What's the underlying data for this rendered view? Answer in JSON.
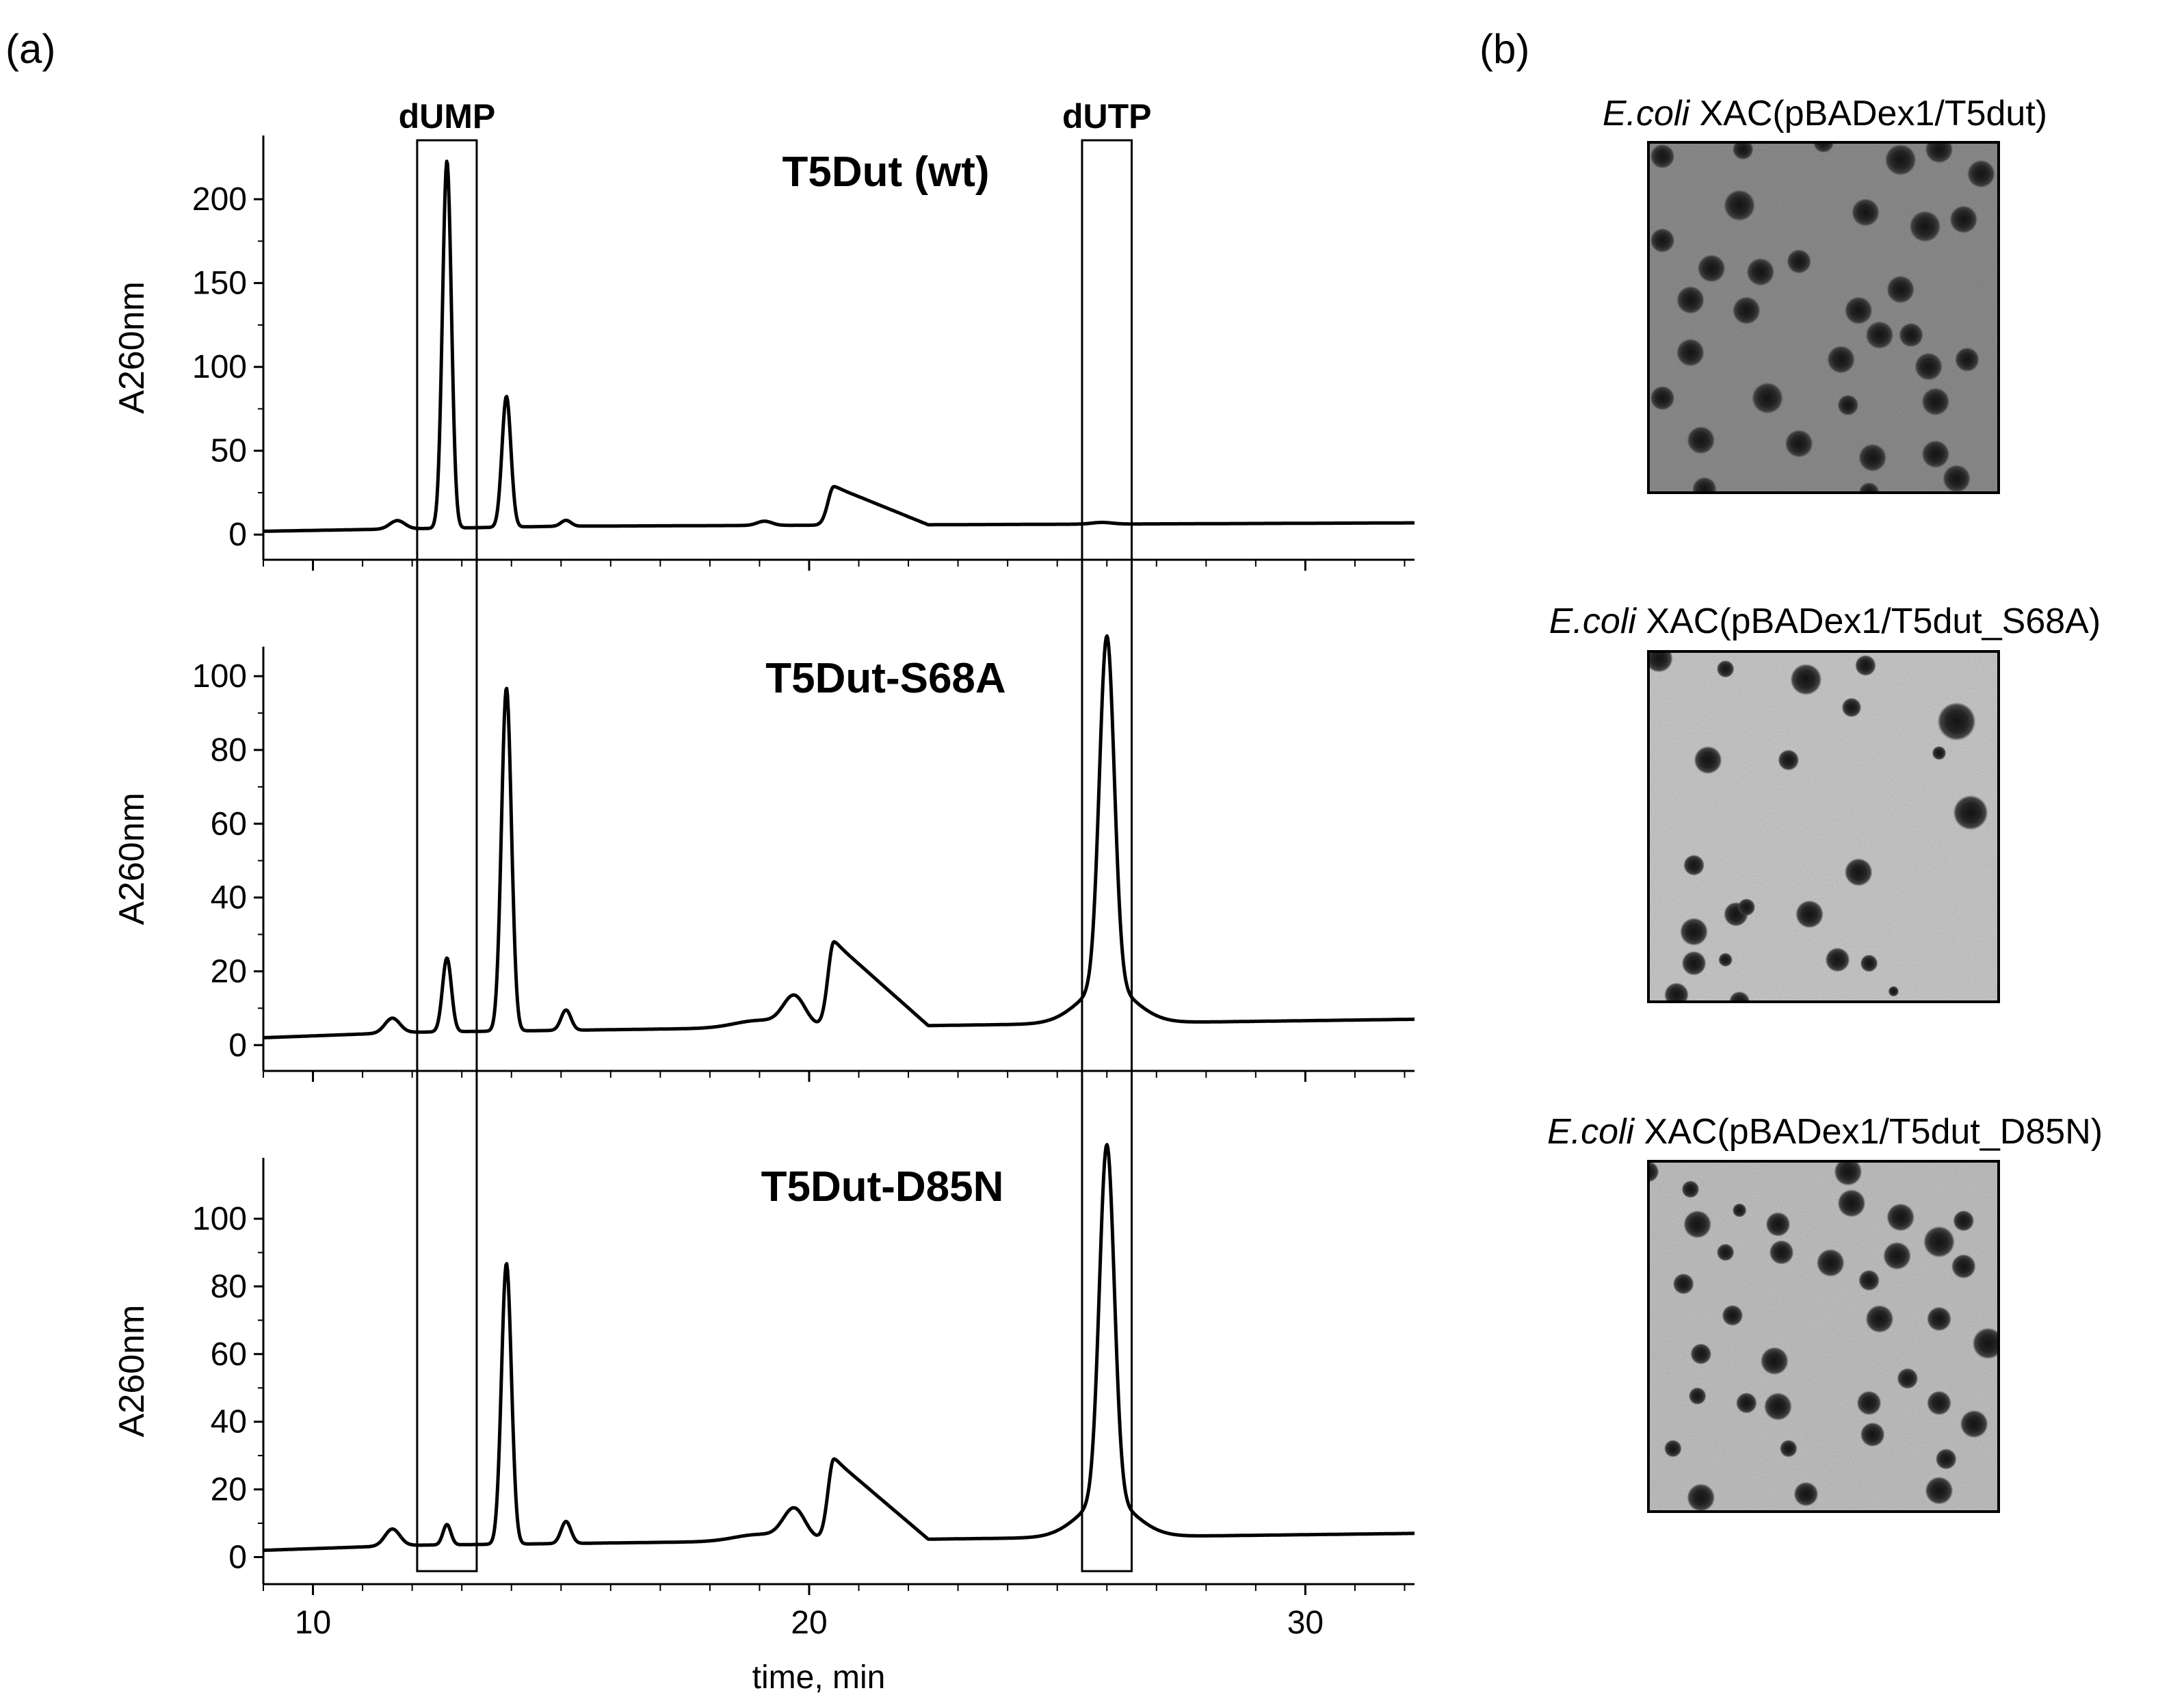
{
  "panel_a_label": "(a)",
  "panel_b_label": "(b)",
  "chart_data": {
    "type": "line",
    "xlabel": "time, min",
    "xlim": [
      9,
      32.2
    ],
    "x_ticks": [
      10,
      20,
      30
    ],
    "highlight_boxes": [
      {
        "label": "dUMP",
        "x_range": [
          12.1,
          13.3
        ]
      },
      {
        "label": "dUTP",
        "x_range": [
          25.5,
          26.5
        ]
      }
    ],
    "panels": [
      {
        "title": "T5Dut (wt)",
        "ylabel": "A260nm",
        "ylim": [
          -15,
          238
        ],
        "y_ticks": [
          0,
          50,
          100,
          150,
          200
        ],
        "baseline": [
          [
            9,
            2
          ],
          [
            12,
            3.5
          ],
          [
            15,
            5
          ],
          [
            32.2,
            7
          ]
        ],
        "peaks": [
          {
            "x": 11.7,
            "y": 5,
            "width": 0.15
          },
          {
            "x": 12.7,
            "y": 219,
            "width": 0.09
          },
          {
            "x": 13.9,
            "y": 78,
            "width": 0.09
          },
          {
            "x": 15.1,
            "y": 3.5,
            "width": 0.1
          },
          {
            "x": 19.1,
            "y": 2.5,
            "width": 0.15
          },
          {
            "x": 20.5,
            "y": 23,
            "width": 0.12,
            "tail": 0.75
          },
          {
            "x": 25.9,
            "y": 1,
            "width": 0.2
          }
        ]
      },
      {
        "title": "T5Dut-S68A",
        "ylabel": "A260nm",
        "ylim": [
          -7,
          108
        ],
        "y_ticks": [
          0,
          20,
          40,
          60,
          80,
          100
        ],
        "baseline": [
          [
            9,
            2
          ],
          [
            12,
            3.5
          ],
          [
            15,
            4
          ],
          [
            32.2,
            7
          ]
        ],
        "peaks": [
          {
            "x": 11.6,
            "y": 4,
            "width": 0.15
          },
          {
            "x": 12.7,
            "y": 20,
            "width": 0.09
          },
          {
            "x": 13.9,
            "y": 93,
            "width": 0.1
          },
          {
            "x": 15.1,
            "y": 5.5,
            "width": 0.1
          },
          {
            "x": 19.0,
            "y": 2,
            "width": 0.5
          },
          {
            "x": 19.7,
            "y": 8,
            "width": 0.22
          },
          {
            "x": 20.5,
            "y": 23,
            "width": 0.12,
            "tail": 0.75
          },
          {
            "x": 26.0,
            "y": 95,
            "width": 0.15
          },
          {
            "x": 26.0,
            "y": 10,
            "width": 0.55
          }
        ]
      },
      {
        "title": "T5Dut-D85N",
        "ylabel": "A260nm",
        "ylim": [
          -8,
          118
        ],
        "y_ticks": [
          0,
          20,
          40,
          60,
          80,
          100
        ],
        "baseline": [
          [
            9,
            2
          ],
          [
            12,
            3.5
          ],
          [
            15,
            4
          ],
          [
            32.2,
            7
          ]
        ],
        "peaks": [
          {
            "x": 11.6,
            "y": 5,
            "width": 0.15
          },
          {
            "x": 12.7,
            "y": 6,
            "width": 0.08
          },
          {
            "x": 13.9,
            "y": 83,
            "width": 0.1
          },
          {
            "x": 15.1,
            "y": 6.5,
            "width": 0.1
          },
          {
            "x": 19.0,
            "y": 2,
            "width": 0.5
          },
          {
            "x": 19.7,
            "y": 9,
            "width": 0.22
          },
          {
            "x": 20.5,
            "y": 24,
            "width": 0.12,
            "tail": 0.75
          },
          {
            "x": 26.0,
            "y": 105,
            "width": 0.15
          },
          {
            "x": 26.0,
            "y": 11,
            "width": 0.55
          }
        ]
      }
    ]
  },
  "colonies": [
    {
      "caption_italic": "E.coli",
      "caption_rest": " XAC(pBADex1/T5dut)",
      "background": "#8c8c8c",
      "spots": [
        [
          0.04,
          0.04,
          0.035
        ],
        [
          0.27,
          0.02,
          0.03
        ],
        [
          0.5,
          0.0,
          0.03
        ],
        [
          0.72,
          0.05,
          0.045
        ],
        [
          0.83,
          0.02,
          0.04
        ],
        [
          0.95,
          0.09,
          0.04
        ],
        [
          0.04,
          0.28,
          0.035
        ],
        [
          0.26,
          0.18,
          0.045
        ],
        [
          0.62,
          0.2,
          0.04
        ],
        [
          0.79,
          0.24,
          0.045
        ],
        [
          0.9,
          0.22,
          0.04
        ],
        [
          0.18,
          0.36,
          0.04
        ],
        [
          0.32,
          0.37,
          0.04
        ],
        [
          0.43,
          0.34,
          0.035
        ],
        [
          0.12,
          0.45,
          0.04
        ],
        [
          0.28,
          0.48,
          0.04
        ],
        [
          0.6,
          0.48,
          0.04
        ],
        [
          0.72,
          0.42,
          0.04
        ],
        [
          0.66,
          0.55,
          0.04
        ],
        [
          0.75,
          0.55,
          0.035
        ],
        [
          0.12,
          0.6,
          0.04
        ],
        [
          0.55,
          0.62,
          0.04
        ],
        [
          0.8,
          0.64,
          0.04
        ],
        [
          0.91,
          0.62,
          0.035
        ],
        [
          0.04,
          0.73,
          0.035
        ],
        [
          0.34,
          0.73,
          0.045
        ],
        [
          0.57,
          0.75,
          0.03
        ],
        [
          0.82,
          0.74,
          0.04
        ],
        [
          0.15,
          0.85,
          0.04
        ],
        [
          0.43,
          0.86,
          0.04
        ],
        [
          0.64,
          0.9,
          0.04
        ],
        [
          0.82,
          0.89,
          0.04
        ],
        [
          0.88,
          0.96,
          0.04
        ],
        [
          0.16,
          0.99,
          0.035
        ],
        [
          0.63,
          1.0,
          0.03
        ]
      ]
    },
    {
      "caption_italic": "E.coli",
      "caption_rest": " XAC(pBADex1/T5dut_S68A)",
      "background": "#c8c8c8",
      "spots": [
        [
          0.03,
          0.02,
          0.04
        ],
        [
          0.22,
          0.05,
          0.025
        ],
        [
          0.45,
          0.08,
          0.045
        ],
        [
          0.62,
          0.04,
          0.03
        ],
        [
          0.58,
          0.16,
          0.028
        ],
        [
          0.88,
          0.2,
          0.055
        ],
        [
          0.17,
          0.31,
          0.04
        ],
        [
          0.4,
          0.31,
          0.03
        ],
        [
          0.83,
          0.29,
          0.02
        ],
        [
          0.92,
          0.46,
          0.05
        ],
        [
          0.13,
          0.61,
          0.03
        ],
        [
          0.6,
          0.63,
          0.04
        ],
        [
          0.25,
          0.75,
          0.035
        ],
        [
          0.13,
          0.8,
          0.04
        ],
        [
          0.46,
          0.75,
          0.04
        ],
        [
          0.28,
          0.73,
          0.025
        ],
        [
          0.13,
          0.89,
          0.035
        ],
        [
          0.22,
          0.88,
          0.02
        ],
        [
          0.54,
          0.88,
          0.035
        ],
        [
          0.63,
          0.89,
          0.025
        ],
        [
          0.08,
          0.98,
          0.035
        ],
        [
          0.26,
          1.0,
          0.03
        ],
        [
          0.7,
          0.97,
          0.015
        ]
      ]
    },
    {
      "caption_italic": "E.coli",
      "caption_rest": " XAC(pBADex1/T5dut_D85N)",
      "background": "#c0c0c0",
      "spots": [
        [
          0.0,
          0.03,
          0.03
        ],
        [
          0.12,
          0.08,
          0.025
        ],
        [
          0.26,
          0.14,
          0.02
        ],
        [
          0.57,
          0.03,
          0.04
        ],
        [
          0.58,
          0.12,
          0.04
        ],
        [
          0.14,
          0.18,
          0.04
        ],
        [
          0.37,
          0.18,
          0.035
        ],
        [
          0.72,
          0.16,
          0.04
        ],
        [
          0.9,
          0.17,
          0.03
        ],
        [
          0.22,
          0.26,
          0.025
        ],
        [
          0.38,
          0.26,
          0.035
        ],
        [
          0.52,
          0.29,
          0.04
        ],
        [
          0.71,
          0.27,
          0.04
        ],
        [
          0.83,
          0.23,
          0.045
        ],
        [
          0.9,
          0.3,
          0.035
        ],
        [
          0.63,
          0.34,
          0.03
        ],
        [
          0.1,
          0.35,
          0.03
        ],
        [
          0.24,
          0.44,
          0.03
        ],
        [
          0.66,
          0.45,
          0.04
        ],
        [
          0.83,
          0.45,
          0.035
        ],
        [
          0.97,
          0.52,
          0.045
        ],
        [
          0.15,
          0.55,
          0.03
        ],
        [
          0.36,
          0.57,
          0.04
        ],
        [
          0.74,
          0.62,
          0.03
        ],
        [
          0.14,
          0.67,
          0.025
        ],
        [
          0.28,
          0.69,
          0.03
        ],
        [
          0.37,
          0.7,
          0.04
        ],
        [
          0.63,
          0.69,
          0.035
        ],
        [
          0.83,
          0.69,
          0.035
        ],
        [
          0.64,
          0.78,
          0.035
        ],
        [
          0.93,
          0.75,
          0.04
        ],
        [
          0.07,
          0.82,
          0.025
        ],
        [
          0.4,
          0.82,
          0.025
        ],
        [
          0.15,
          0.96,
          0.04
        ],
        [
          0.45,
          0.95,
          0.035
        ],
        [
          0.83,
          0.94,
          0.04
        ],
        [
          0.85,
          0.85,
          0.03
        ]
      ]
    }
  ]
}
